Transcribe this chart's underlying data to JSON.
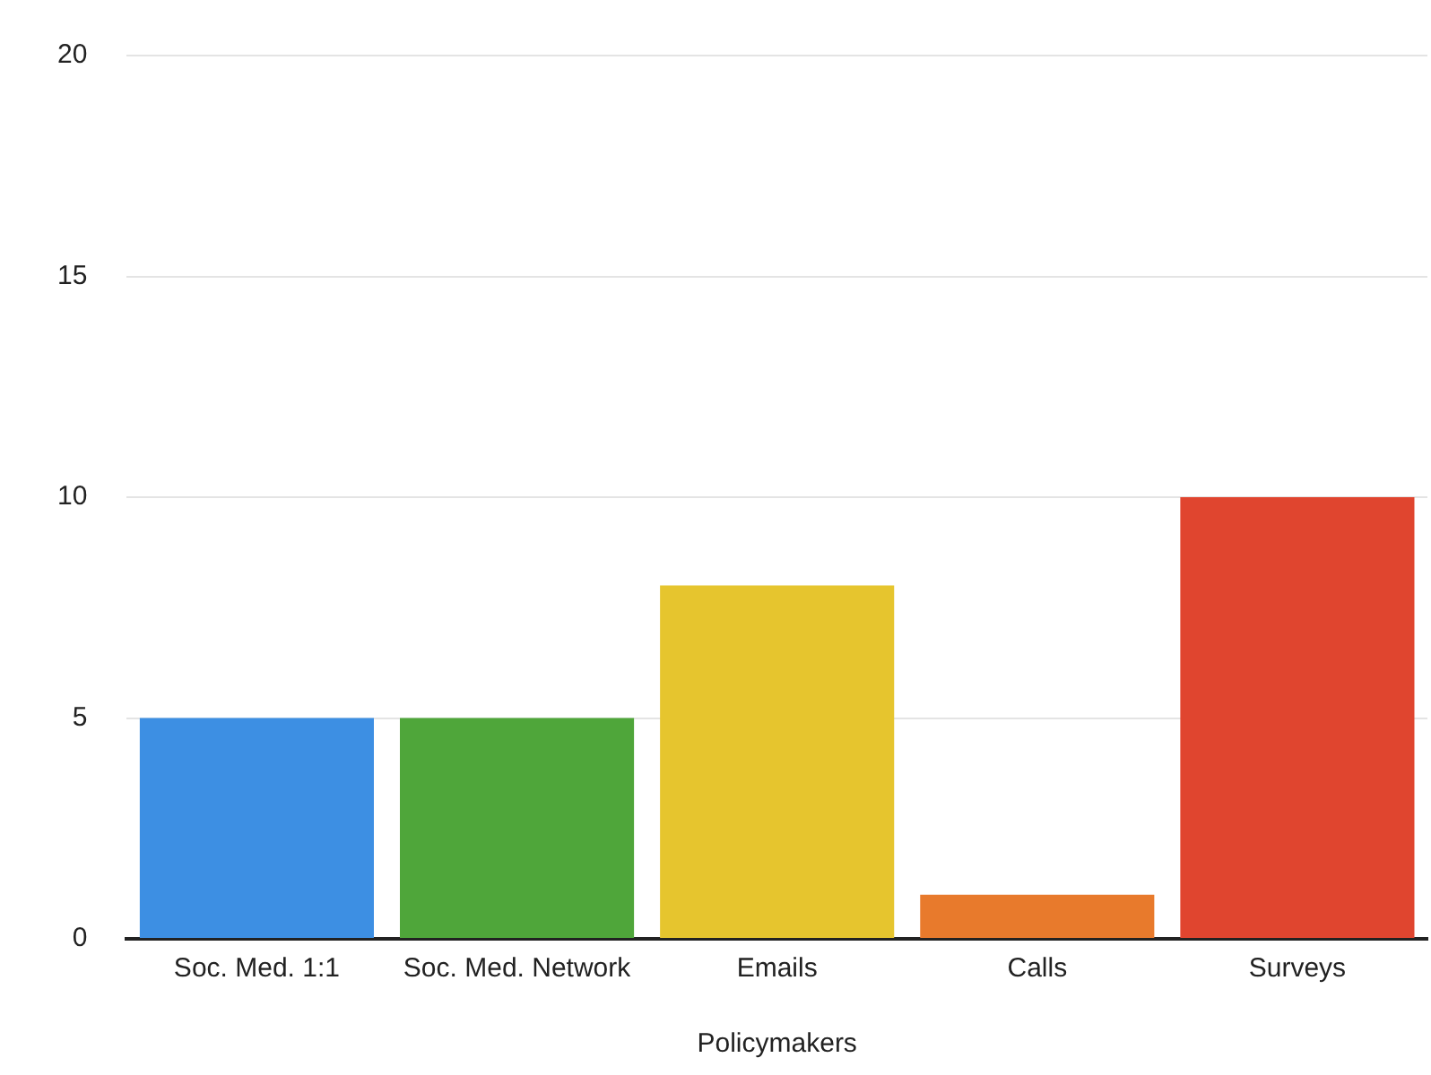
{
  "chart_data": {
    "type": "bar",
    "xlabel": "Policymakers",
    "categories": [
      "Soc. Med. 1:1",
      "Soc. Med. Network",
      "Emails",
      "Calls",
      "Surveys"
    ],
    "values": [
      5,
      5,
      8,
      1,
      10
    ],
    "colors": [
      "#3d8fe3",
      "#4fa63a",
      "#e6c52e",
      "#e87a2c",
      "#e0452f"
    ],
    "ylim": [
      0,
      20
    ],
    "yticks": [
      0,
      5,
      10,
      15,
      20
    ],
    "grid": "y",
    "legend": false
  }
}
